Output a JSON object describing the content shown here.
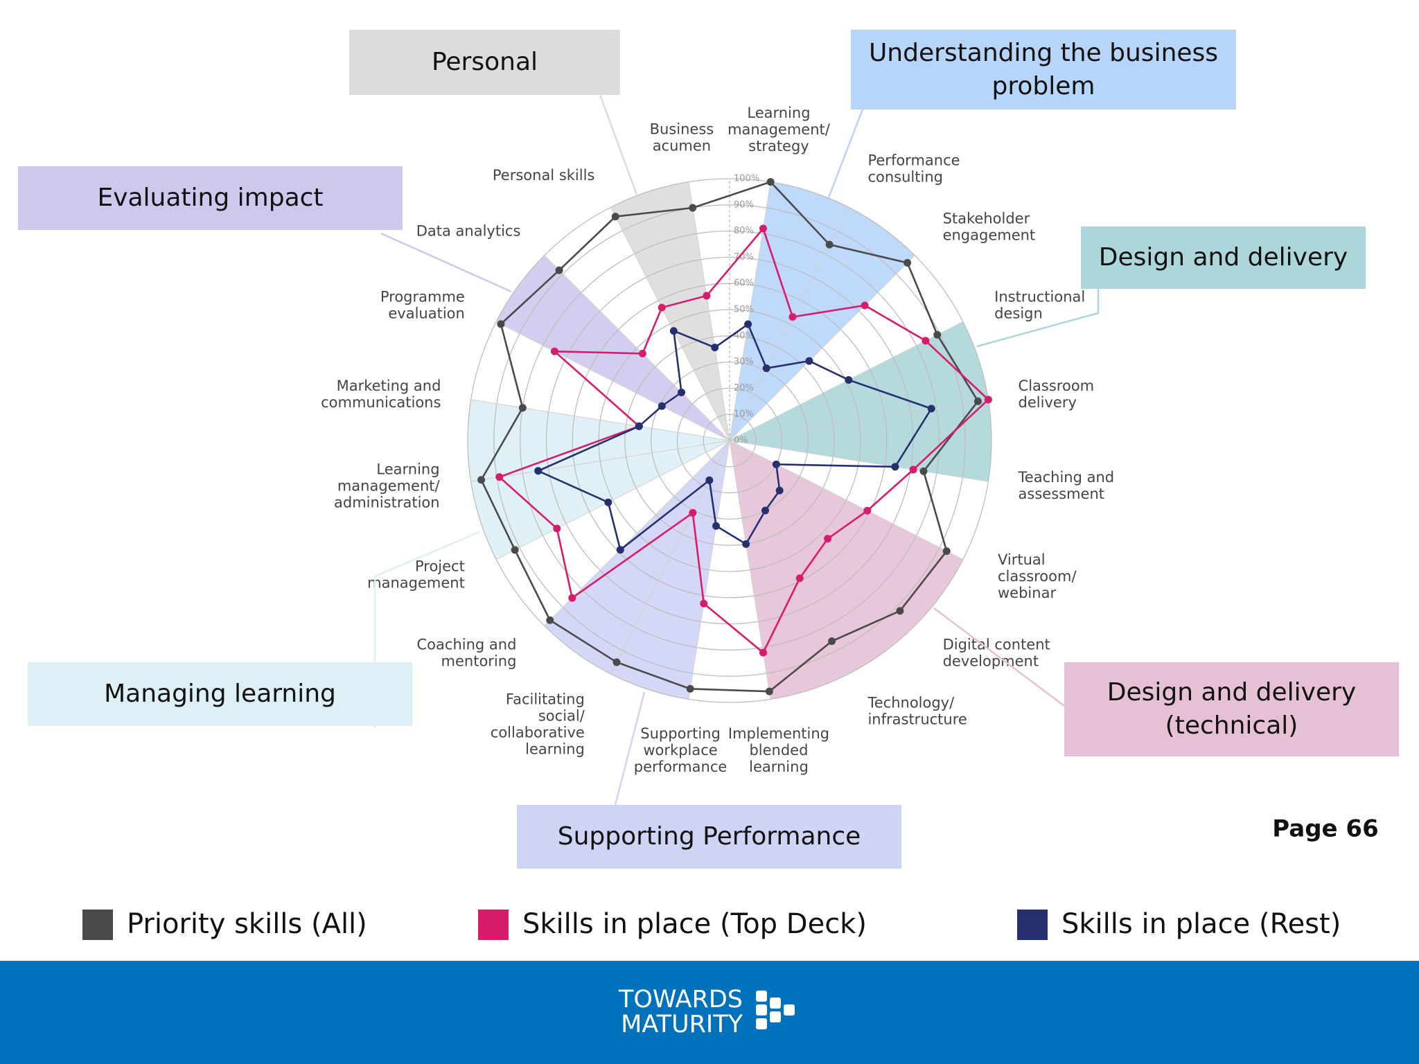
{
  "chart_data": {
    "type": "radar",
    "groups": [
      {
        "name": "Understanding the business problem",
        "color": "#b7d5f8",
        "categories": [
          [
            "Learning",
            "management/",
            "strategy"
          ],
          [
            "Performance",
            "consulting"
          ],
          [
            "Stakeholder",
            "engagement"
          ]
        ]
      },
      {
        "name": "Design and delivery",
        "color": "#acd6da",
        "categories": [
          [
            "Instructional",
            "design"
          ],
          [
            "Classroom",
            "delivery"
          ],
          [
            "Teaching and",
            "assessment"
          ]
        ]
      },
      {
        "name": "Design and delivery (technical)",
        "color": "#e6c1d6",
        "categories": [
          [
            "Virtual",
            "classroom/",
            "webinar"
          ],
          [
            "Digital content",
            "development"
          ],
          [
            "Technology/",
            "infrastructure"
          ],
          [
            "Implementing",
            "blended",
            "learning"
          ]
        ]
      },
      {
        "name": "Supporting Performance",
        "color": "#cfd3f4",
        "categories": [
          [
            "Supporting",
            "workplace",
            "performance"
          ],
          [
            "Facilitating",
            "social/",
            "collaborative",
            "learning"
          ],
          [
            "Coaching and",
            "mentoring"
          ]
        ]
      },
      {
        "name": "Managing learning",
        "color": "#dcf0f5",
        "categories": [
          [
            "Project",
            "management"
          ],
          [
            "Learning",
            "management/",
            "administration"
          ],
          [
            "Marketing and",
            "communications"
          ]
        ]
      },
      {
        "name": "Evaluating impact",
        "color": "#cec8ed",
        "categories": [
          [
            "Programme",
            "evaluation"
          ],
          [
            "Data analytics"
          ]
        ]
      },
      {
        "name": "Personal",
        "color": "#dcdcdc",
        "categories": [
          [
            "Personal skills"
          ],
          [
            "Business",
            "acumen"
          ]
        ]
      }
    ],
    "series": [
      {
        "name": "Priority skills (All)",
        "color": "#4a4a4a",
        "values": [
          100,
          84,
          96,
          89,
          96,
          75,
          93,
          92,
          86,
          97,
          96,
          95,
          97,
          92,
          96,
          80,
          98,
          92,
          96,
          90
        ]
      },
      {
        "name": "Skills in place (Top Deck)",
        "color": "#d81b6a",
        "values": [
          82,
          53,
          73,
          84,
          100,
          71,
          59,
          53,
          59,
          82,
          63,
          31,
          85,
          74,
          89,
          35,
          75,
          47,
          57,
          56
        ]
      },
      {
        "name": "Skills in place (Rest)",
        "color": "#27306e",
        "values": [
          45,
          31,
          43,
          51,
          78,
          64,
          20,
          27,
          30,
          40,
          33,
          17,
          59,
          52,
          74,
          35,
          29,
          26,
          47,
          36
        ]
      }
    ],
    "ylim": [
      0,
      100
    ],
    "yticks": [
      {
        "value": 0,
        "label": "0%"
      },
      {
        "value": 10,
        "label": "10%"
      },
      {
        "value": 20,
        "label": "20%"
      },
      {
        "value": 30,
        "label": "30%"
      },
      {
        "value": 40,
        "label": "40%"
      },
      {
        "value": 50,
        "label": "50%"
      },
      {
        "value": 60,
        "label": "60%"
      },
      {
        "value": 70,
        "label": "70%"
      },
      {
        "value": 80,
        "label": "80%"
      },
      {
        "value": 90,
        "label": "90%"
      },
      {
        "value": 100,
        "label": "100%"
      }
    ],
    "grid": true,
    "page_label": "Page 66",
    "footer_logo": [
      "TOWARDS",
      "MATURITY"
    ]
  }
}
